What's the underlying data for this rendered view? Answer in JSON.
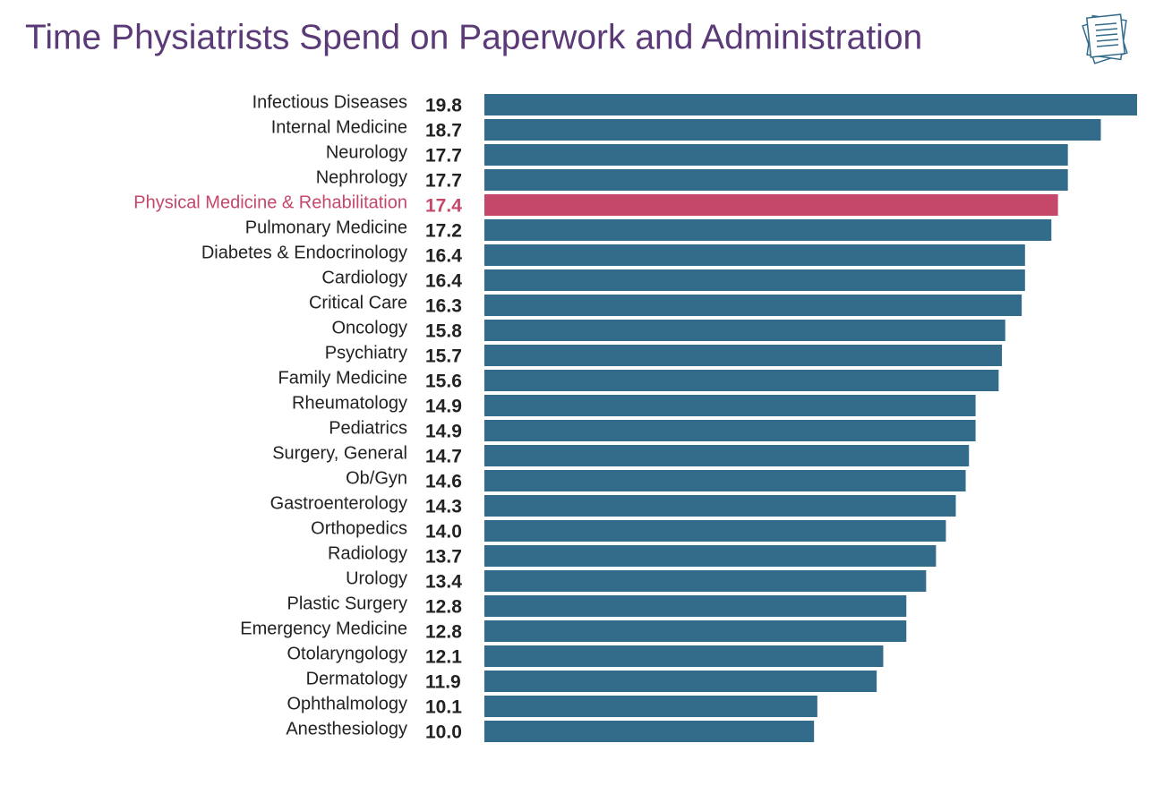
{
  "chart_data": {
    "type": "bar",
    "orientation": "horizontal",
    "title": "Time Physiatrists Spend on Paperwork and Administration",
    "categories": [
      "Infectious Diseases",
      "Internal Medicine",
      "Neurology",
      "Nephrology",
      "Physical Medicine & Rehabilitation",
      "Pulmonary Medicine",
      "Diabetes & Endocrinology",
      "Cardiology",
      "Critical Care",
      "Oncology",
      "Psychiatry",
      "Family Medicine",
      "Rheumatology",
      "Pediatrics",
      "Surgery, General",
      "Ob/Gyn",
      "Gastroenterology",
      "Orthopedics",
      "Radiology",
      "Urology",
      "Plastic Surgery",
      "Emergency Medicine",
      "Otolaryngology",
      "Dermatology",
      "Ophthalmology",
      "Anesthesiology"
    ],
    "values": [
      19.8,
      18.7,
      17.7,
      17.7,
      17.4,
      17.2,
      16.4,
      16.4,
      16.3,
      15.8,
      15.7,
      15.6,
      14.9,
      14.9,
      14.7,
      14.6,
      14.3,
      14.0,
      13.7,
      13.4,
      12.8,
      12.8,
      12.1,
      11.9,
      10.1,
      10.0
    ],
    "value_labels": [
      "19.8",
      "18.7",
      "17.7",
      "17.7",
      "17.4",
      "17.2",
      "16.4",
      "16.4",
      "16.3",
      "15.8",
      "15.7",
      "15.6",
      "14.9",
      "14.9",
      "14.7",
      "14.6",
      "14.3",
      "14.0",
      "13.7",
      "13.4",
      "12.8",
      "12.8",
      "12.1",
      "11.9",
      "10.1",
      "10.0"
    ],
    "colors": [
      "#336b8a",
      "#336b8a",
      "#336b8a",
      "#336b8a",
      "#c5476a",
      "#336b8a",
      "#336b8a",
      "#336b8a",
      "#336b8a",
      "#336b8a",
      "#336b8a",
      "#336b8a",
      "#336b8a",
      "#336b8a",
      "#336b8a",
      "#336b8a",
      "#336b8a",
      "#336b8a",
      "#336b8a",
      "#336b8a",
      "#336b8a",
      "#336b8a",
      "#336b8a",
      "#336b8a",
      "#336b8a",
      "#336b8a"
    ],
    "label_colors": [
      "#222222",
      "#222222",
      "#222222",
      "#222222",
      "#c5476a",
      "#222222",
      "#222222",
      "#222222",
      "#222222",
      "#222222",
      "#222222",
      "#222222",
      "#222222",
      "#222222",
      "#222222",
      "#222222",
      "#222222",
      "#222222",
      "#222222",
      "#222222",
      "#222222",
      "#222222",
      "#222222",
      "#222222",
      "#222222",
      "#222222"
    ],
    "xlim": [
      0,
      19.8
    ]
  }
}
